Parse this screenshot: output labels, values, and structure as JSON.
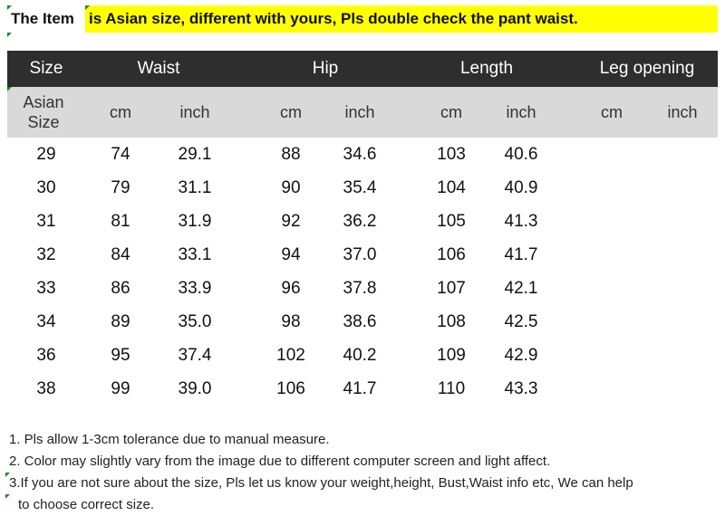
{
  "header": {
    "prefix": "The Item",
    "main": "is Asian size, different with yours, Pls double check the pant waist."
  },
  "table": {
    "columns": [
      "Size",
      "Waist",
      "Hip",
      "Length",
      "Leg opening"
    ],
    "size_label": "Asian Size",
    "unit_cm": "cm",
    "unit_inch": "inch",
    "rows": [
      [
        "29",
        "74",
        "29.1",
        "88",
        "34.6",
        "103",
        "40.6",
        "",
        ""
      ],
      [
        "30",
        "79",
        "31.1",
        "90",
        "35.4",
        "104",
        "40.9",
        "",
        ""
      ],
      [
        "31",
        "81",
        "31.9",
        "92",
        "36.2",
        "105",
        "41.3",
        "",
        ""
      ],
      [
        "32",
        "84",
        "33.1",
        "94",
        "37.0",
        "106",
        "41.7",
        "",
        ""
      ],
      [
        "33",
        "86",
        "33.9",
        "96",
        "37.8",
        "107",
        "42.1",
        "",
        ""
      ],
      [
        "34",
        "89",
        "35.0",
        "98",
        "38.6",
        "108",
        "42.5",
        "",
        ""
      ],
      [
        "36",
        "95",
        "37.4",
        "102",
        "40.2",
        "109",
        "42.9",
        "",
        ""
      ],
      [
        "38",
        "99",
        "39.0",
        "106",
        "41.7",
        "110",
        "43.3",
        "",
        ""
      ]
    ]
  },
  "notes": [
    "1. Pls allow 1-3cm tolerance due to manual measure.",
    "2. Color may slightly vary from the image due to different computer screen and light affect.",
    "3.If you are not sure about the size, Pls let us know your weight,height, Bust,Waist info etc, We can help",
    "to choose correct size."
  ],
  "colors": {
    "highlight": "#ffff00",
    "header_dark": "#2e2e2e",
    "header_light": "#d9d9d9",
    "corner_marker": "#1e8a1e"
  }
}
